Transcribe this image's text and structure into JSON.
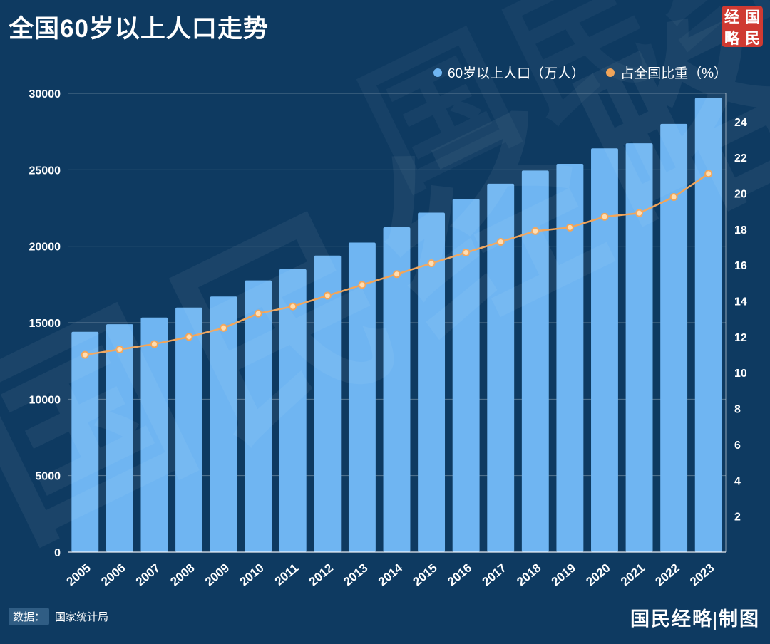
{
  "header": {
    "title": "全国60岁以上人口走势",
    "stamp": {
      "chars": [
        "经",
        "国",
        "略",
        "民"
      ],
      "color": "#cf3a32"
    }
  },
  "legend": {
    "items": [
      {
        "label": "60岁以上人口（万人）",
        "color": "#6fb5f2"
      },
      {
        "label": "占全国比重（%）",
        "color": "#f2a559"
      }
    ]
  },
  "watermark": {
    "text": "国民经略"
  },
  "footer": {
    "source_label": "数据：",
    "source_value": "国家统计局",
    "credit": "国民经略|制图"
  },
  "chart_data": {
    "type": "bar",
    "title": "全国60岁以上人口走势",
    "categories": [
      "2005",
      "2006",
      "2007",
      "2008",
      "2009",
      "2010",
      "2011",
      "2012",
      "2013",
      "2014",
      "2015",
      "2016",
      "2017",
      "2018",
      "2019",
      "2020",
      "2021",
      "2022",
      "2023"
    ],
    "series": [
      {
        "name": "60岁以上人口（万人）",
        "type": "bar",
        "axis": "left",
        "color": "#6fb5f2",
        "values": [
          14408,
          14901,
          15340,
          15989,
          16714,
          17765,
          18499,
          19390,
          20243,
          21242,
          22200,
          23086,
          24090,
          24949,
          25388,
          26402,
          26736,
          28004,
          29697
        ]
      },
      {
        "name": "占全国比重（%）",
        "type": "line",
        "axis": "right",
        "color": "#f2a559",
        "marker_fill": "#ffddb0",
        "values": [
          11.0,
          11.3,
          11.6,
          12.0,
          12.5,
          13.3,
          13.7,
          14.3,
          14.9,
          15.5,
          16.1,
          16.7,
          17.3,
          17.9,
          18.1,
          18.7,
          18.9,
          19.8,
          21.1
        ]
      }
    ],
    "left_axis": {
      "min": 0,
      "max": 30000,
      "ticks": [
        0,
        5000,
        10000,
        15000,
        20000,
        25000,
        30000
      ]
    },
    "right_axis": {
      "min": 0,
      "max": 25.58,
      "ticks": [
        2,
        4,
        6,
        8,
        10,
        12,
        14,
        16,
        18,
        20,
        22,
        24
      ]
    },
    "grid": "horizontal",
    "legend_position": "top-right",
    "background": "#0e3a61"
  }
}
